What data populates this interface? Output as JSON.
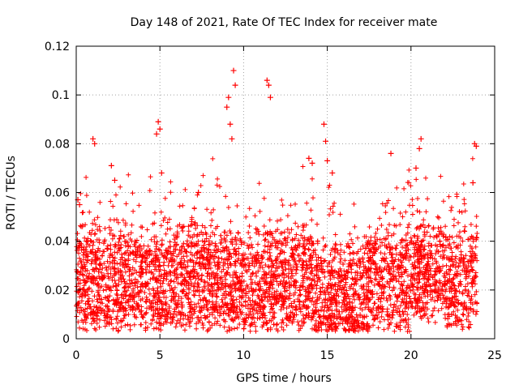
{
  "chart_data": {
    "type": "scatter",
    "title": "Day 148 of 2021, Rate Of TEC Index for receiver mate",
    "xlabel": "GPS time / hours",
    "ylabel": "ROTI / TECUs",
    "xlim": [
      0,
      25
    ],
    "ylim": [
      0,
      0.12
    ],
    "x_ticks": [
      0,
      5,
      10,
      15,
      20,
      25
    ],
    "x_tick_labels": [
      "0",
      "5",
      "10",
      "15",
      "20",
      "25"
    ],
    "y_ticks": [
      0,
      0.02,
      0.04,
      0.06,
      0.08,
      0.1,
      0.12
    ],
    "y_tick_labels": [
      "0",
      "0.02",
      "0.04",
      "0.06",
      "0.08",
      "0.1",
      "0.12"
    ],
    "grid": true,
    "marker": "+",
    "color": "#ff0000",
    "series": [
      {
        "name": "ROTI",
        "note": "dense band of points roughly 0.005-0.045 TECUs across 0-24 h; notable peaks listed in x/y",
        "x": [
          0.1,
          0.2,
          1.0,
          1.1,
          2.1,
          2.3,
          4.8,
          4.9,
          5.0,
          5.1,
          7.3,
          9.0,
          9.1,
          9.2,
          9.3,
          9.4,
          9.5,
          11.4,
          11.5,
          11.6,
          13.9,
          14.1,
          14.8,
          14.9,
          15.0,
          15.3,
          18.8,
          20.3,
          20.5,
          20.6,
          23.7,
          23.8,
          23.9
        ],
        "y": [
          0.057,
          0.055,
          0.082,
          0.08,
          0.071,
          0.065,
          0.084,
          0.089,
          0.086,
          0.068,
          0.06,
          0.095,
          0.099,
          0.088,
          0.082,
          0.11,
          0.104,
          0.106,
          0.104,
          0.099,
          0.074,
          0.072,
          0.088,
          0.081,
          0.073,
          0.068,
          0.076,
          0.07,
          0.078,
          0.082,
          0.064,
          0.08,
          0.079
        ]
      }
    ]
  }
}
